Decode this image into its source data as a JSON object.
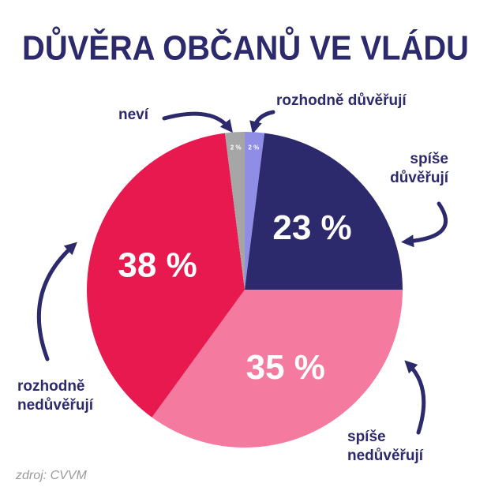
{
  "chart_data": {
    "type": "pie",
    "title": "DŮVĚRA OBČANŮ VE VLÁDU",
    "categories": [
      "rozhodně důvěřují",
      "spíše důvěřují",
      "spíše nedůvěřují",
      "rozhodně nedůvěřují",
      "neví"
    ],
    "values": [
      2,
      23,
      35,
      38,
      2
    ],
    "value_labels": [
      "2 %",
      "23 %",
      "35 %",
      "38 %",
      "2 %"
    ],
    "colors": [
      "#8f8de6",
      "#2c2a6c",
      "#f47a9f",
      "#e8194f",
      "#a6a6a6"
    ],
    "source": "zdroj: CVVM"
  }
}
